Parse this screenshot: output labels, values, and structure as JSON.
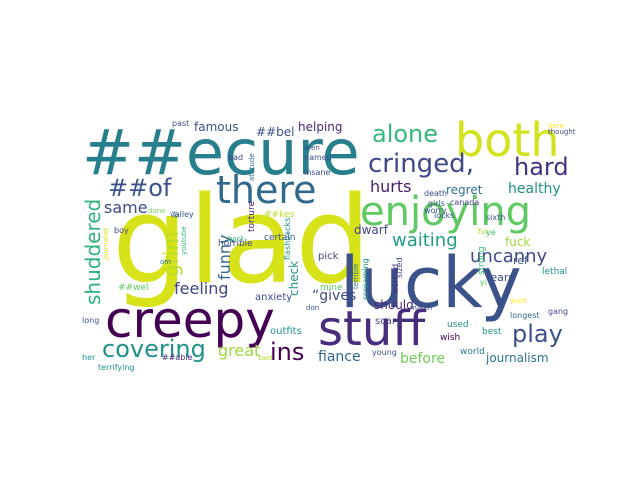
{
  "words": [
    {
      "text": "glad",
      "color": "#d7e219"
    },
    {
      "text": "##ecure",
      "color": "#277f8e"
    },
    {
      "text": "lucky",
      "color": "#3b528b"
    },
    {
      "text": "stuff",
      "color": "#472d7b"
    },
    {
      "text": "creepy",
      "color": "#440154"
    },
    {
      "text": "both",
      "color": "#d2e21b"
    },
    {
      "text": "enjoying",
      "color": "#5ec962"
    },
    {
      "text": "there",
      "color": "#31688e"
    },
    {
      "text": "cringed,",
      "color": "#3e4a89"
    },
    {
      "text": "alone",
      "color": "#35b779"
    },
    {
      "text": "hard",
      "color": "#46307e"
    },
    {
      "text": "##of",
      "color": "#3b528b"
    },
    {
      "text": "covering",
      "color": "#21918c"
    },
    {
      "text": "play",
      "color": "#3b528b"
    },
    {
      "text": "ins",
      "color": "#440154"
    },
    {
      "text": "shuddered",
      "color": "#2db27d"
    },
    {
      "text": "grim",
      "color": "#b5de2b"
    },
    {
      "text": "uncanny",
      "color": "#3e4a89"
    },
    {
      "text": "waiting",
      "color": "#1f9e89"
    },
    {
      "text": "funny",
      "color": "#31688e"
    },
    {
      "text": "same",
      "color": "#3e4a89"
    },
    {
      "text": "hurts",
      "color": "#481a6c"
    },
    {
      "text": "healthy",
      "color": "#21918c"
    },
    {
      "text": "great",
      "color": "#9bd93c"
    },
    {
      "text": "feeling",
      "color": "#414487"
    },
    {
      "text": "fiance",
      "color": "#31688e"
    },
    {
      "text": "before",
      "color": "#6ece58"
    },
    {
      "text": "journalism",
      "color": "#2c728e"
    },
    {
      "text": "famous",
      "color": "#3b528b"
    },
    {
      "text": "helping",
      "color": "#482878"
    },
    {
      "text": "##bel",
      "color": "#3b528b"
    },
    {
      "text": "regret",
      "color": "#2c728e"
    },
    {
      "text": "dwarf",
      "color": "#414487"
    },
    {
      "text": "should",
      "color": "#482878"
    },
    {
      "text": "fuck",
      "color": "#9bd93c"
    },
    {
      "text": "“gives",
      "color": "#3e4a89"
    },
    {
      "text": "check",
      "color": "#21918c"
    },
    {
      "text": "ref",
      "color": "#3b528b"
    },
    {
      "text": "anxiety",
      "color": "#3e4a89"
    },
    {
      "text": "outfits",
      "color": "#21918c"
    },
    {
      "text": "scary",
      "color": "#414487"
    },
    {
      "text": "mine",
      "color": "#5ec962"
    },
    {
      "text": "pick",
      "color": "#3e4a89"
    },
    {
      "text": "tears",
      "color": "#3e4a89"
    },
    {
      "text": "lethal",
      "color": "#21918c"
    },
    {
      "text": "gang",
      "color": "#3e4a89"
    },
    {
      "text": "best",
      "color": "#21918c"
    },
    {
      "text": "used",
      "color": "#21918c"
    },
    {
      "text": "wish",
      "color": "#440154"
    },
    {
      "text": "world",
      "color": "#2c728e"
    },
    {
      "text": "young",
      "color": "#3b528b"
    },
    {
      "text": "longest",
      "color": "#31688e"
    },
    {
      "text": "terrifying",
      "color": "#21918c"
    },
    {
      "text": "##able",
      "color": "#482878"
    },
    {
      "text": "long",
      "color": "#3b528b"
    },
    {
      "text": "her",
      "color": "#21918c"
    },
    {
      "text": "boy",
      "color": "#414487"
    },
    {
      "text": "journalist",
      "color": "#d7e219"
    },
    {
      "text": "##wel",
      "color": "#5ec962"
    },
    {
      "text": "om",
      "color": "#2c728e"
    },
    {
      "text": "valley",
      "color": "#3b528b"
    },
    {
      "text": "done",
      "color": "#7ad151"
    },
    {
      "text": "youtube",
      "color": "#35b779"
    },
    {
      "text": "horrible",
      "color": "#3e4a89"
    },
    {
      "text": "##kes",
      "color": "#b5de2b"
    },
    {
      "text": "certain",
      "color": "#3b528b"
    },
    {
      "text": "torture",
      "color": "#482878"
    },
    {
      "text": "back",
      "color": "#35b779"
    },
    {
      "text": "flashbacks",
      "color": "#21918c"
    },
    {
      "text": "past",
      "color": "#3e4a89"
    },
    {
      "text": "bad",
      "color": "#414487"
    },
    {
      "text": "attitude",
      "color": "#2c728e"
    },
    {
      "text": "named",
      "color": "#3b528b"
    },
    {
      "text": "aren",
      "color": "#3e4a89"
    },
    {
      "text": "insane",
      "color": "#3e4a89"
    },
    {
      "text": "girls",
      "color": "#3b528b"
    },
    {
      "text": "death",
      "color": "#3e4a89"
    },
    {
      "text": "canada",
      "color": "#414487"
    },
    {
      "text": "worry",
      "color": "#3b528b"
    },
    {
      "text": "locks",
      "color": "#3b528b"
    },
    {
      "text": "sixth",
      "color": "#3b528b"
    },
    {
      "text": "terrible",
      "color": "#2c728e"
    },
    {
      "text": "screaming",
      "color": "#21918c"
    },
    {
      "text": "worried",
      "color": "#482878"
    },
    {
      "text": "sized",
      "color": "#3e4a89"
    },
    {
      "text": "strong",
      "color": "#35b779"
    },
    {
      "text": "for",
      "color": "#b5de2b"
    },
    {
      "text": "match",
      "color": "#3e4a89"
    },
    {
      "text": "ye",
      "color": "#35b779"
    },
    {
      "text": "yi",
      "color": "#5ec962"
    },
    {
      "text": "here",
      "color": "#fde725"
    },
    {
      "text": "thought",
      "color": "#3e4a89"
    },
    {
      "text": "want",
      "color": "#fde725"
    },
    {
      "text": "don",
      "color": "#3b528b"
    },
    {
      "text": "said",
      "color": "#b5de2b"
    },
    {
      "text": "of",
      "color": "#2c728e"
    }
  ]
}
